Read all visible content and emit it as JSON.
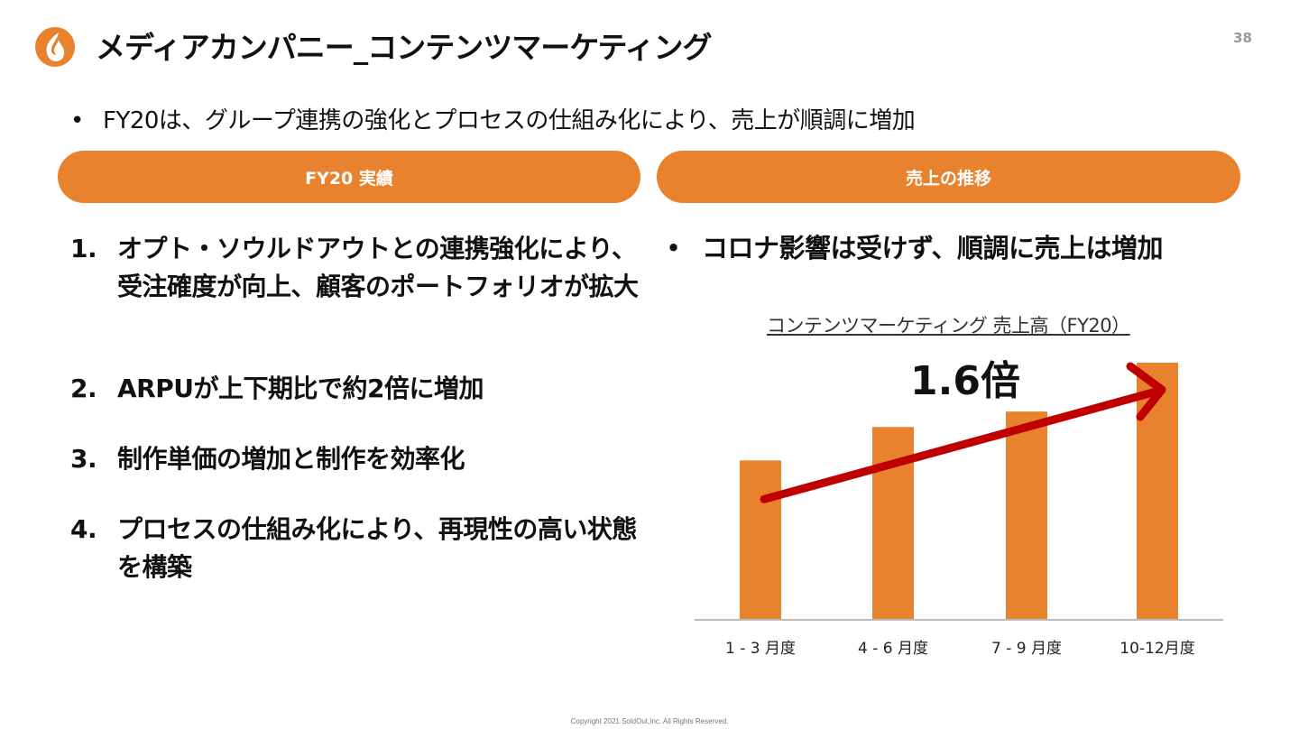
{
  "header": {
    "title": "メディアカンパニー_コンテンツマーケティング",
    "page_number": "38",
    "logo_icon": "flame-logo-icon"
  },
  "summary": {
    "bullet": "•",
    "text": "FY20は、グループ連携の強化とプロセスの仕組み化により、売上が順調に増加"
  },
  "left_panel": {
    "heading": "FY20 実績",
    "points": [
      {
        "num": "1.",
        "text": "オプト・ソウルドアウトとの連携強化により、受注確度が向上、顧客のポートフォリオが拡大"
      },
      {
        "num": "2.",
        "text": "ARPUが上下期比で約2倍に増加"
      },
      {
        "num": "3.",
        "text": "制作単価の増加と制作を効率化"
      },
      {
        "num": "4.",
        "text": "プロセスの仕組み化により、再現性の高い状態を構築"
      }
    ]
  },
  "right_panel": {
    "heading": "売上の推移",
    "bullet": "•",
    "statement": "コロナ影響は受けず、順調に売上は増加"
  },
  "colors": {
    "accent": "#E8822E",
    "arrow": "#C00000"
  },
  "chart_data": {
    "type": "bar",
    "title": "コンテンツマーケティング 売上高（FY20）",
    "categories": [
      "1 - 3 月度",
      "4 - 6 月度",
      "7 - 9 月度",
      "10-12月度"
    ],
    "values": [
      0.62,
      0.75,
      0.81,
      1.0
    ],
    "annotation": "1.6倍",
    "ylim": [
      0,
      1.0
    ]
  },
  "footer": {
    "copyright": "Copyright 2021 SoldOut,Inc. All Rights Reserved."
  }
}
